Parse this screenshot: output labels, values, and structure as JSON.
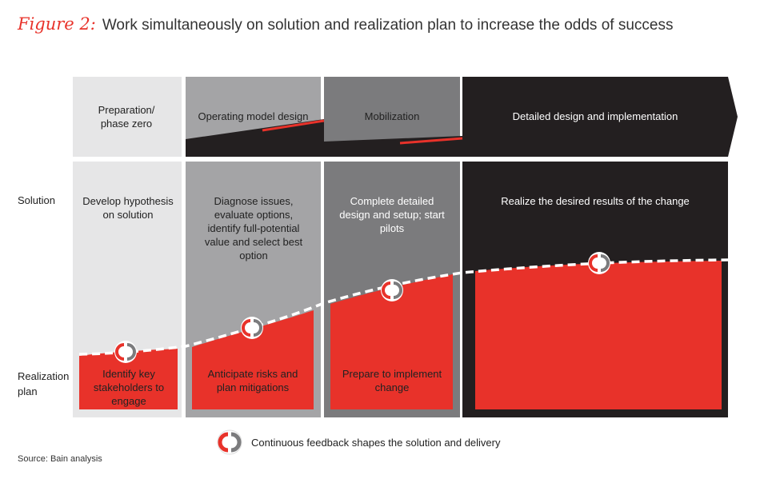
{
  "title": {
    "figure_label": "Figure 2:",
    "text": "Work simultaneously on solution and realization plan to increase the odds of success"
  },
  "row_labels": {
    "solution": "Solution",
    "realization": "Realization plan"
  },
  "phases": [
    {
      "header": "Preparation/ phase zero",
      "solution": "Develop hypothesis on solution",
      "realization": "Identify key stakeholders to engage"
    },
    {
      "header": "Operating model design",
      "solution": "Diagnose issues, evaluate options, identify full-potential value and select best option",
      "realization": "Anticipate risks and plan mitigations"
    },
    {
      "header": "Mobilization",
      "solution": "Complete detailed design and setup; start pilots",
      "realization": "Prepare to implement change"
    },
    {
      "header": "Detailed design and implementation",
      "solution": "Realize the desired results of the change",
      "realization": ""
    }
  ],
  "legend": {
    "icon": "feedback-cycle-icon",
    "text": "Continuous feedback shapes the solution and delivery"
  },
  "source": "Source: Bain analysis",
  "colors": {
    "accent_red": "#e8322a",
    "phase1": "#e6e6e7",
    "phase2": "#a4a4a6",
    "phase3": "#7b7b7d",
    "phase4": "#231f20"
  }
}
